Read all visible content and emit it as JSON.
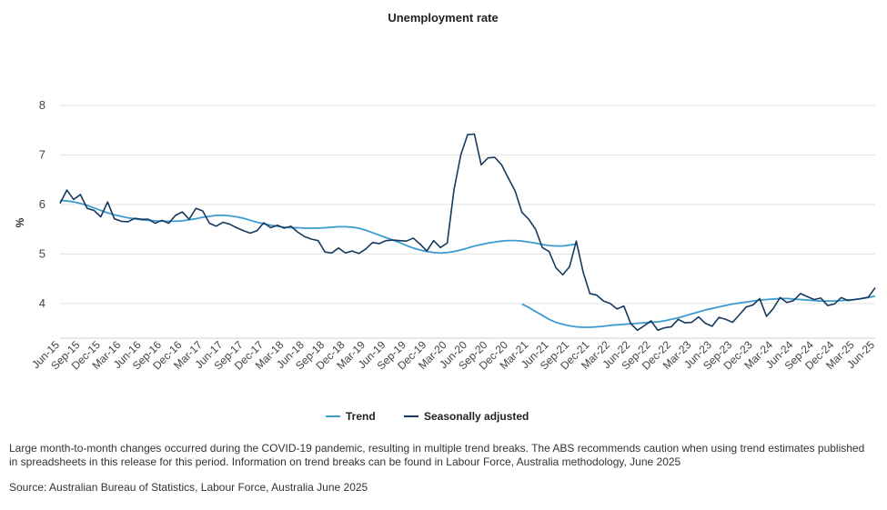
{
  "chart_data": {
    "type": "line",
    "title": "Unemployment rate",
    "ylabel": "%",
    "xlabel": "",
    "ylim": [
      3.3,
      8.2
    ],
    "yticks": [
      4,
      5,
      6,
      7,
      8
    ],
    "grid": true,
    "legend_position": "bottom",
    "x_tick_labels": [
      "Jun-15",
      "Sep-15",
      "Dec-15",
      "Mar-16",
      "Jun-16",
      "Sep-16",
      "Dec-16",
      "Mar-17",
      "Jun-17",
      "Sep-17",
      "Dec-17",
      "Mar-18",
      "Jun-18",
      "Sep-18",
      "Dec-18",
      "Mar-19",
      "Jun-19",
      "Sep-19",
      "Dec-19",
      "Mar-20",
      "Jun-20",
      "Sep-20",
      "Dec-20",
      "Mar-21",
      "Jun-21",
      "Sep-21",
      "Dec-21",
      "Mar-22",
      "Jun-22",
      "Sep-22",
      "Dec-22",
      "Mar-23",
      "Jun-23",
      "Sep-23",
      "Dec-23",
      "Mar-24",
      "Jun-24",
      "Sep-24",
      "Dec-24",
      "Mar-25",
      "Jun-25"
    ],
    "series": [
      {
        "name": "Trend",
        "color": "#3d9bd1",
        "segments": [
          [
            6.08,
            6.07,
            6.05,
            6.02,
            5.98,
            5.93,
            5.88,
            5.83,
            5.79,
            5.76,
            5.73,
            5.71,
            5.69,
            5.68,
            5.67,
            5.66,
            5.66,
            5.66,
            5.67,
            5.69,
            5.71,
            5.74,
            5.76,
            5.78,
            5.78,
            5.77,
            5.75,
            5.72,
            5.68,
            5.64,
            5.61,
            5.58,
            5.56,
            5.54,
            5.53,
            5.53,
            5.52,
            5.52,
            5.52,
            5.53,
            5.54,
            5.55,
            5.55,
            5.54,
            5.52,
            5.48,
            5.43,
            5.38,
            5.33,
            5.28,
            5.23,
            5.17,
            5.12,
            5.08,
            5.05,
            5.03,
            5.02,
            5.03,
            5.05,
            5.08,
            5.12,
            5.16,
            5.19,
            5.22,
            5.24,
            5.26,
            5.27,
            5.27,
            5.26,
            5.24,
            5.22,
            5.19,
            5.17,
            5.16,
            5.16,
            5.18,
            5.2
          ],
          [
            3.99,
            3.92,
            3.84,
            3.76,
            3.68,
            3.62,
            3.58,
            3.55,
            3.53,
            3.52,
            3.52,
            3.53,
            3.54,
            3.56,
            3.57,
            3.58,
            3.59,
            3.6,
            3.61,
            3.62,
            3.63,
            3.65,
            3.68,
            3.71,
            3.75,
            3.79,
            3.83,
            3.87,
            3.9,
            3.93,
            3.96,
            3.99,
            4.01,
            4.03,
            4.05,
            4.07,
            4.08,
            4.09,
            4.1,
            4.1,
            4.09,
            4.08,
            4.07,
            4.06,
            4.05,
            4.05,
            4.05,
            4.06,
            4.07,
            4.08,
            4.1,
            4.12,
            4.15
          ]
        ]
      },
      {
        "name": "Seasonally adjusted",
        "color": "#163a5f",
        "segments": [
          [
            6.02,
            6.29,
            6.1,
            6.2,
            5.92,
            5.88,
            5.75,
            6.05,
            5.71,
            5.66,
            5.65,
            5.72,
            5.7,
            5.7,
            5.62,
            5.68,
            5.62,
            5.78,
            5.85,
            5.7,
            5.92,
            5.87,
            5.62,
            5.56,
            5.64,
            5.6,
            5.53,
            5.47,
            5.42,
            5.47,
            5.63,
            5.53,
            5.58,
            5.52,
            5.56,
            5.44,
            5.35,
            5.3,
            5.27,
            5.04,
            5.02,
            5.12,
            5.02,
            5.06,
            5.01,
            5.1,
            5.23,
            5.21,
            5.27,
            5.28,
            5.27,
            5.26,
            5.32,
            5.2,
            5.06,
            5.27,
            5.13,
            5.22,
            6.3,
            7.0,
            7.41,
            7.42,
            6.8,
            6.94,
            6.95,
            6.8,
            6.53,
            6.27,
            5.84,
            5.7,
            5.5,
            5.13,
            5.05,
            4.72,
            4.58,
            4.74,
            5.26,
            4.64,
            4.2,
            4.17,
            4.05,
            4.0,
            3.89,
            3.95,
            3.6,
            3.46,
            3.55,
            3.65,
            3.46,
            3.51,
            3.53,
            3.68,
            3.61,
            3.62,
            3.73,
            3.6,
            3.54,
            3.72,
            3.68,
            3.62,
            3.77,
            3.93,
            3.97,
            4.1,
            3.74,
            3.9,
            4.12,
            4.02,
            4.06,
            4.2,
            4.14,
            4.08,
            4.11,
            3.96,
            3.99,
            4.12,
            4.06,
            4.08,
            4.1,
            4.13,
            4.32
          ]
        ]
      }
    ]
  },
  "note": "Large month-to-month changes occurred during the COVID-19 pandemic, resulting in multiple trend breaks. The ABS recommends caution when using trend estimates published in spreadsheets in this release for this period. Information on trend breaks can be found in Labour Force, Australia methodology, June 2025",
  "source": "Source: Australian Bureau of Statistics, Labour Force, Australia June 2025"
}
